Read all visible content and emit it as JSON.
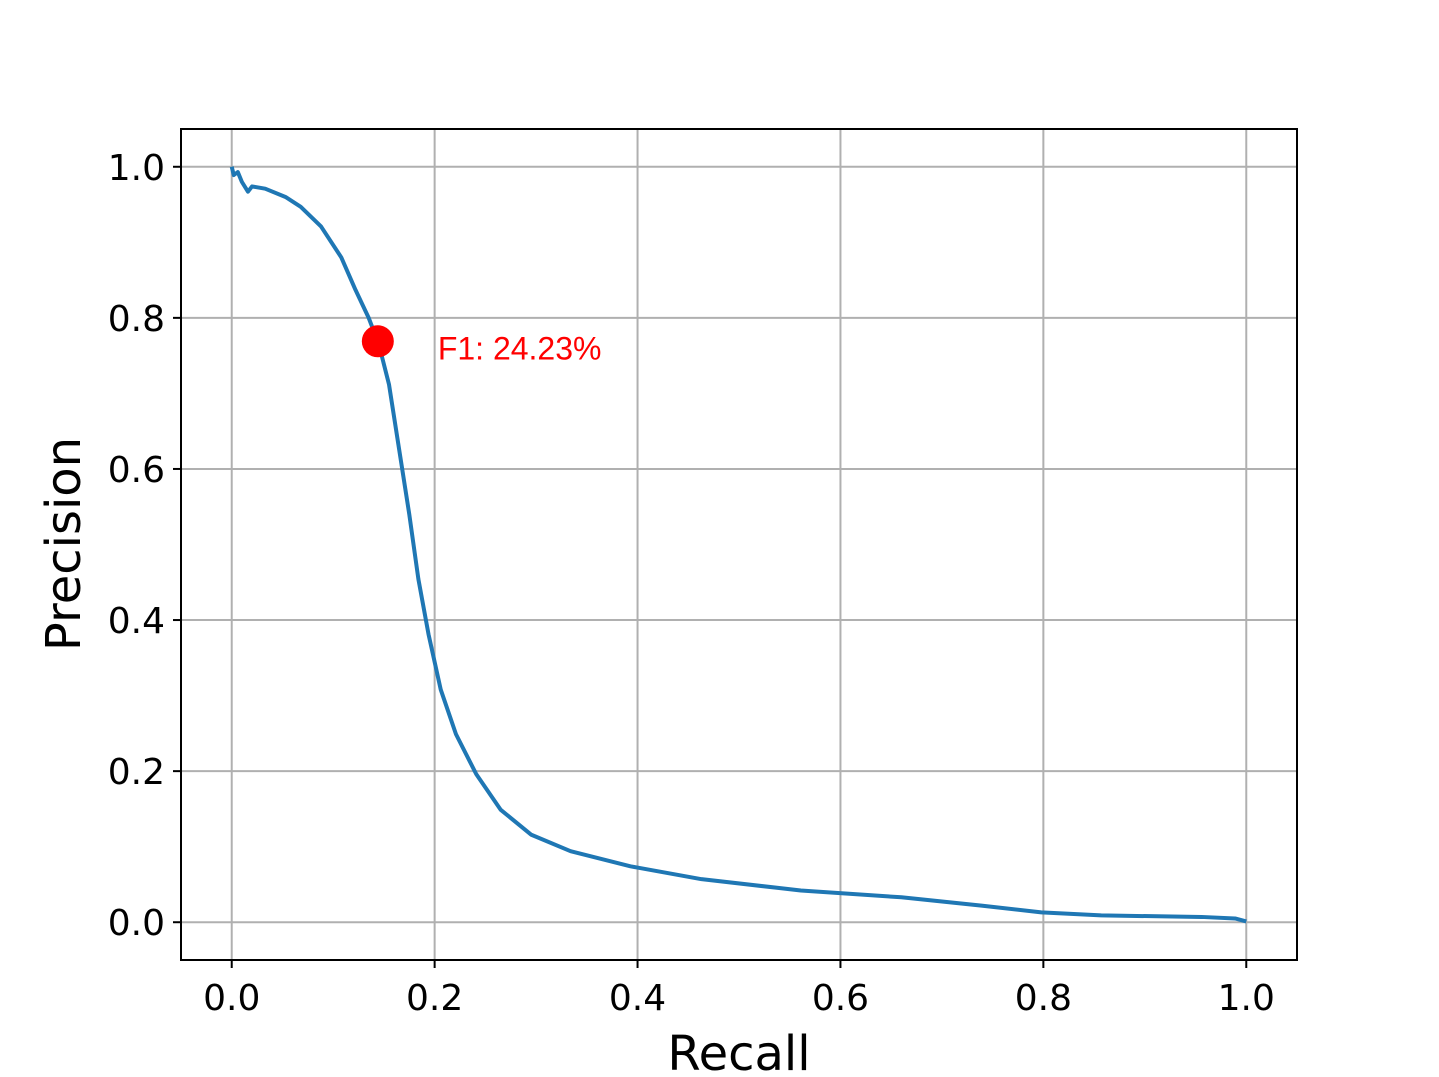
{
  "chart_data": {
    "type": "line",
    "xlabel": "Recall",
    "ylabel": "Precision",
    "x": [
      0,
      0.002,
      0.006,
      0.01,
      0.016,
      0.02,
      0.033,
      0.053,
      0.068,
      0.088,
      0.108,
      0.122,
      0.135,
      0.145,
      0.155,
      0.165,
      0.175,
      0.184,
      0.194,
      0.206,
      0.221,
      0.241,
      0.265,
      0.295,
      0.334,
      0.393,
      0.463,
      0.561,
      0.66,
      0.739,
      0.798,
      0.857,
      0.956,
      0.989,
      1.0
    ],
    "series": [
      {
        "color": "#1f77b4",
        "values": [
          1.0,
          0.989,
          0.993,
          0.98,
          0.967,
          0.974,
          0.971,
          0.96,
          0.947,
          0.921,
          0.88,
          0.837,
          0.8,
          0.765,
          0.712,
          0.626,
          0.54,
          0.454,
          0.381,
          0.308,
          0.249,
          0.196,
          0.149,
          0.116,
          0.094,
          0.074,
          0.057,
          0.042,
          0.033,
          0.022,
          0.013,
          0.009,
          0.007,
          0.005,
          0.001
        ]
      }
    ],
    "best_point": {
      "x": 0.144,
      "y": 0.769,
      "label": "F1: 24.23%",
      "color": "#ff0000"
    },
    "xlim": [
      -0.05,
      1.05
    ],
    "ylim": [
      -0.05,
      1.05
    ],
    "xticks": [
      {
        "value": 0,
        "label": "0.0"
      },
      0.2,
      0.4,
      0.6,
      0.8,
      {
        "value": 1,
        "label": "1.0"
      }
    ],
    "yticks": [
      {
        "value": 0,
        "label": "0.0"
      },
      0.2,
      0.4,
      0.6,
      0.8,
      {
        "value": 1,
        "label": "1.0"
      }
    ],
    "grid": true
  }
}
